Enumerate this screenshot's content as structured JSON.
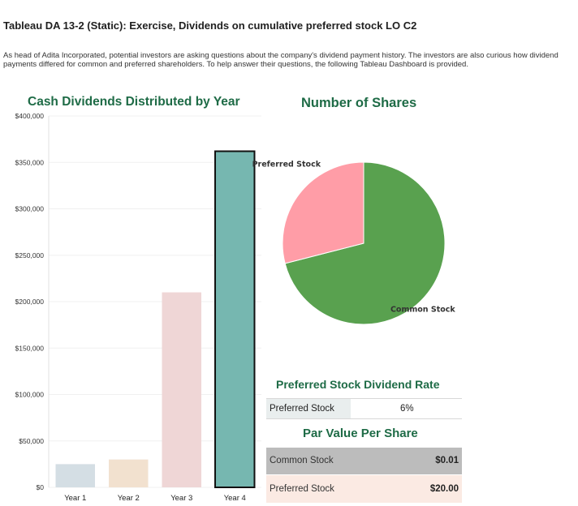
{
  "header": {
    "title": "Tableau DA 13-2 (Static): Exercise, Dividends on cumulative preferred stock LO C2",
    "intro": "As head of Adita Incorporated, potential investors are asking questions about the company's dividend payment history. The investors are also curious how dividend payments differed for common and preferred shareholders. To help answer their questions, the following Tableau Dashboard is provided."
  },
  "chart_data": [
    {
      "type": "bar",
      "title": "Cash Dividends Distributed by Year",
      "categories": [
        "Year 1",
        "Year 2",
        "Year 3",
        "Year 4"
      ],
      "values": [
        25000,
        30000,
        210000,
        362000
      ],
      "ylim": [
        0,
        400000
      ],
      "yticks": [
        0,
        50000,
        100000,
        150000,
        200000,
        250000,
        300000,
        350000,
        400000
      ],
      "ytick_labels": [
        "$0",
        "$50,000",
        "$100,000",
        "$150,000",
        "$200,000",
        "$250,000",
        "$300,000",
        "$350,000",
        "$400,000"
      ],
      "colors": [
        "#d4dee4",
        "#f2e1cf",
        "#efd6d6",
        "#76b7b0"
      ],
      "highlighted_category": "Year 4",
      "xlabel": "",
      "ylabel": ""
    },
    {
      "type": "pie",
      "title": "Number of Shares",
      "slices": [
        {
          "label": "Common Stock",
          "value": 71,
          "color": "#59a14f"
        },
        {
          "label": "Preferred Stock",
          "value": 29,
          "color": "#ff9da7"
        }
      ]
    }
  ],
  "rate_table": {
    "title": "Preferred Stock Dividend Rate",
    "label": "Preferred Stock",
    "value": "6%"
  },
  "par_table": {
    "title": "Par Value Per Share",
    "rows": [
      {
        "label": "Common Stock",
        "value": "$0.01"
      },
      {
        "label": "Preferred Stock",
        "value": "$20.00"
      }
    ]
  }
}
